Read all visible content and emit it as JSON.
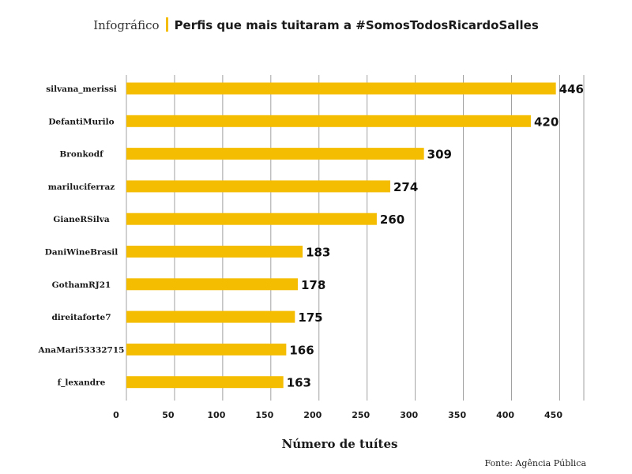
{
  "header": {
    "kicker": "Infográfico",
    "title": "Perfis que mais tuitaram a #SomosTodosRicardoSalles"
  },
  "source": "Fonte: Agência Pública",
  "chart_data": {
    "type": "bar",
    "orientation": "horizontal",
    "categories": [
      "silvana_merissi",
      "DefantiMurilo",
      "Bronkodf",
      "mariluciferraz",
      "GianeRSilva",
      "DaniWineBrasil",
      "GothamRJ21",
      "direitaforte7",
      "AnaMari53332715",
      "f_lexandre"
    ],
    "values": [
      446,
      420,
      309,
      274,
      260,
      183,
      178,
      175,
      166,
      163
    ],
    "xlabel": "Número de tuítes",
    "xlim": [
      0,
      475
    ],
    "xticks": [
      0,
      50,
      100,
      150,
      200,
      250,
      300,
      350,
      400,
      450
    ],
    "grid": "vertical",
    "data_labels": true,
    "bar_color": "#f5bd02"
  }
}
